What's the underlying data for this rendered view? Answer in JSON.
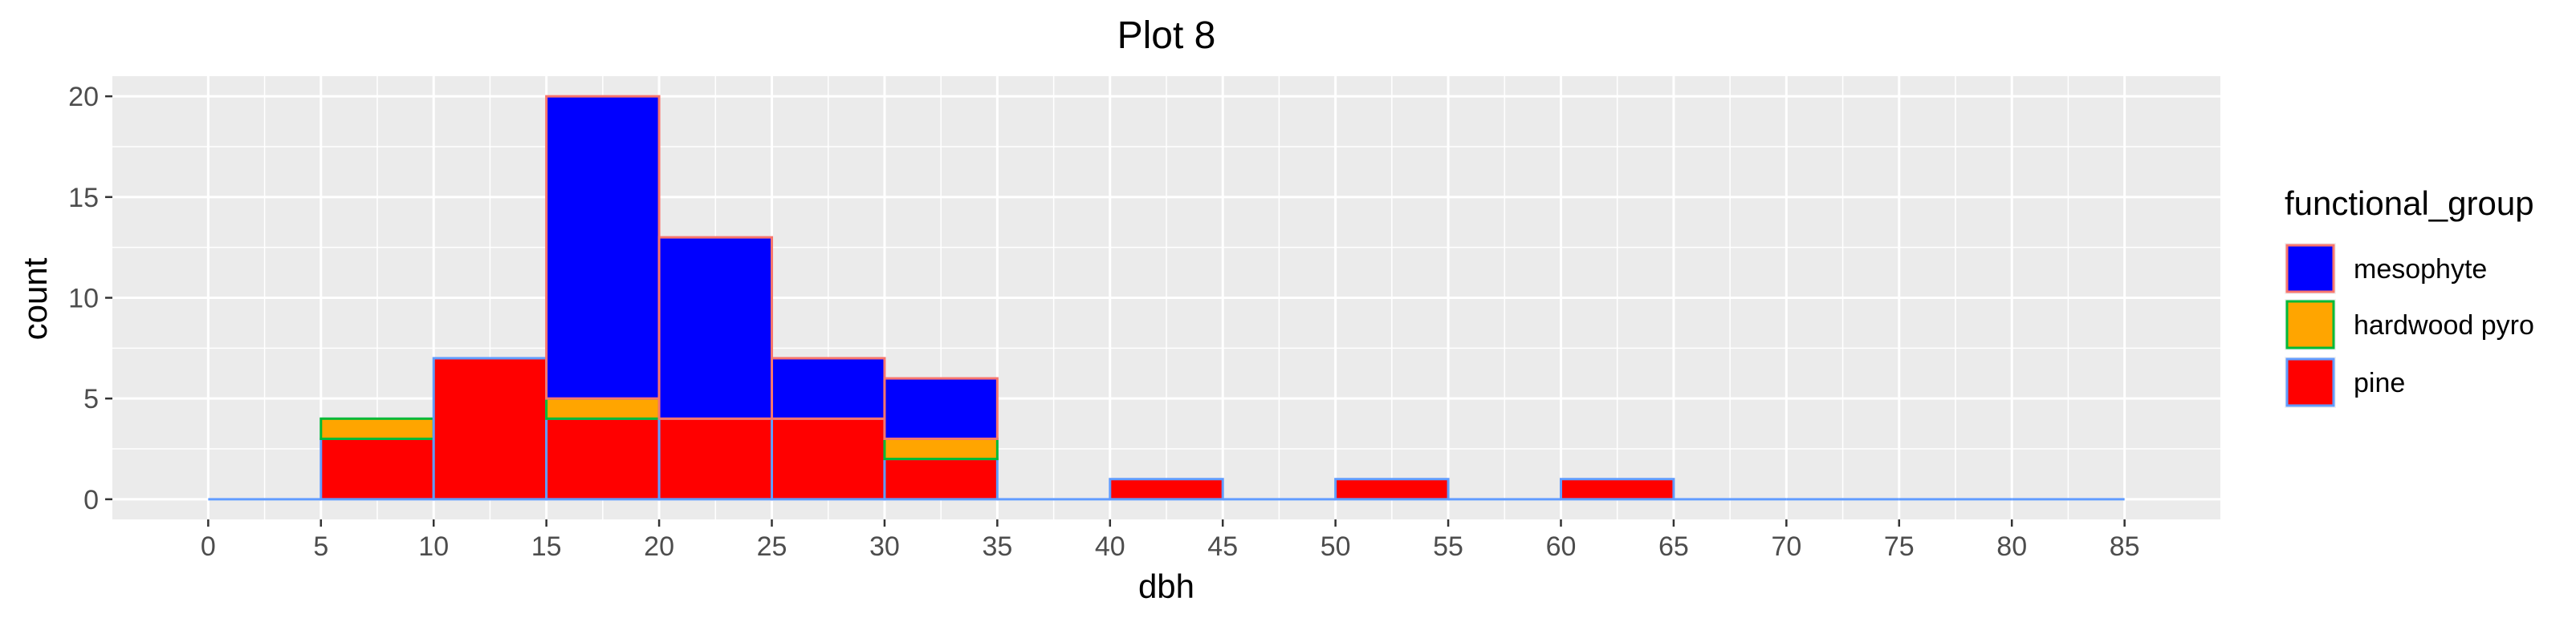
{
  "chart_data": {
    "type": "bar",
    "title": "Plot 8",
    "xlabel": "dbh",
    "ylabel": "count",
    "xlim": [
      -4.25,
      89.25
    ],
    "ylim": [
      -1,
      21
    ],
    "x_ticks": [
      0,
      5,
      10,
      15,
      20,
      25,
      30,
      35,
      40,
      45,
      50,
      55,
      60,
      65,
      70,
      75,
      80,
      85
    ],
    "x_tick_labels": [
      "0",
      "5",
      "10",
      "15",
      "20",
      "25",
      "30",
      "35",
      "40",
      "45",
      "50",
      "55",
      "60",
      "65",
      "70",
      "75",
      "80",
      "85"
    ],
    "y_ticks": [
      0,
      5,
      10,
      15,
      20
    ],
    "y_tick_labels": [
      "0",
      "5",
      "10",
      "15",
      "20"
    ],
    "bin_edges": [
      0,
      5,
      10,
      15,
      20,
      25,
      30,
      35,
      40,
      45,
      50,
      55,
      60,
      65,
      70,
      75,
      80,
      85
    ],
    "stacking": "pine at bottom, hardwood pyro in middle, mesophyte on top",
    "series": [
      {
        "name": "mesophyte",
        "fill": "#0000ff",
        "outline": "#f8766d",
        "values": [
          0,
          0,
          0,
          15,
          9,
          3,
          3,
          0,
          0,
          0,
          0,
          0,
          0,
          0,
          0,
          0,
          0
        ]
      },
      {
        "name": "hardwood pyro",
        "fill": "#ffa500",
        "outline": "#00ba38",
        "values": [
          0,
          1,
          0,
          1,
          0,
          0,
          1,
          0,
          0,
          0,
          0,
          0,
          0,
          0,
          0,
          0,
          0
        ]
      },
      {
        "name": "pine",
        "fill": "#ff0000",
        "outline": "#619cff",
        "values": [
          0,
          3,
          7,
          4,
          4,
          4,
          2,
          0,
          1,
          0,
          1,
          0,
          1,
          0,
          0,
          0,
          0
        ]
      }
    ],
    "legend": {
      "title": "functional_group",
      "placement": "right",
      "items": [
        "mesophyte",
        "hardwood pyro",
        "pine"
      ]
    },
    "grid": true,
    "panel_background": "#ebebeb",
    "grid_color": "#ffffff"
  }
}
